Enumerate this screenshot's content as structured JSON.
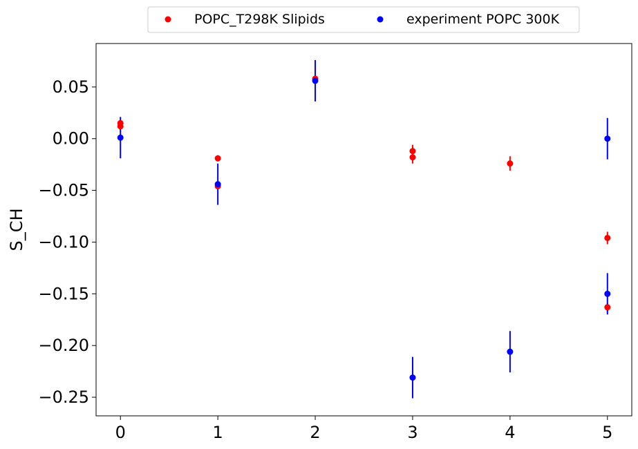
{
  "chart_data": {
    "type": "scatter",
    "ylabel": "S_CH",
    "xlabel": "",
    "xlim": [
      -0.25,
      5.25
    ],
    "ylim": [
      -0.268,
      0.092
    ],
    "x_ticks": [
      0,
      1,
      2,
      3,
      4,
      5
    ],
    "x_tick_labels": [
      "0",
      "1",
      "2",
      "3",
      "4",
      "5"
    ],
    "y_ticks": [
      0.05,
      0.0,
      -0.05,
      -0.1,
      -0.15,
      -0.2,
      -0.25
    ],
    "y_tick_labels": [
      "0.05",
      "0.00",
      "−0.05",
      "−0.10",
      "−0.15",
      "−0.20",
      "−0.25"
    ],
    "grid": false,
    "legend_position": "top-center, outside above plot",
    "series": [
      {
        "name": "POPC_T298K Slipids",
        "color": "#ff0000",
        "points": [
          {
            "x": 0,
            "y": 0.015,
            "err": 0.003
          },
          {
            "x": 0,
            "y": 0.012,
            "err": 0.003
          },
          {
            "x": 1,
            "y": -0.019,
            "err": 0.003
          },
          {
            "x": 1,
            "y": -0.046,
            "err": 0.003
          },
          {
            "x": 2,
            "y": 0.058,
            "err": 0.003
          },
          {
            "x": 3,
            "y": -0.012,
            "err": 0.006
          },
          {
            "x": 3,
            "y": -0.018,
            "err": 0.006
          },
          {
            "x": 4,
            "y": -0.024,
            "err": 0.007
          },
          {
            "x": 5,
            "y": -0.096,
            "err": 0.006
          },
          {
            "x": 5,
            "y": -0.163,
            "err": 0.004
          }
        ]
      },
      {
        "name": "experiment POPC 300K",
        "color": "#0000ff",
        "points": [
          {
            "x": 0,
            "y": 0.001,
            "err": 0.02
          },
          {
            "x": 1,
            "y": -0.044,
            "err": 0.02
          },
          {
            "x": 2,
            "y": 0.056,
            "err": 0.02
          },
          {
            "x": 3,
            "y": -0.231,
            "err": 0.02
          },
          {
            "x": 4,
            "y": -0.206,
            "err": 0.02
          },
          {
            "x": 5,
            "y": 0.0,
            "err": 0.02
          },
          {
            "x": 5,
            "y": -0.15,
            "err": 0.02
          }
        ]
      }
    ]
  }
}
